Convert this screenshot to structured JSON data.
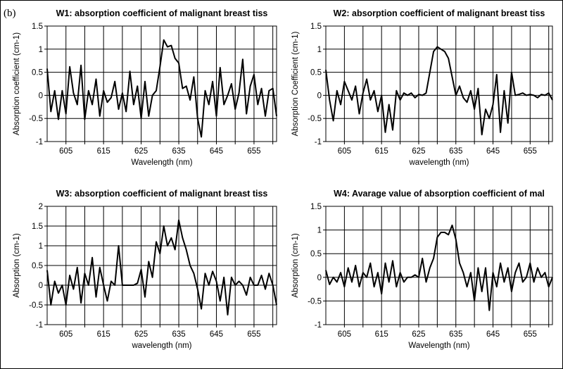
{
  "figure": {
    "panel_label": "(b)"
  },
  "chart_data": [
    {
      "type": "line",
      "title": "W1: absorption coefficient of malignant breast tiss",
      "xlabel": "Wavelength (nm)",
      "ylabel": "Absorption coefficient (cm-1)",
      "xlim": [
        600,
        661
      ],
      "ylim": [
        -1,
        1.5
      ],
      "xticks": [
        605,
        615,
        625,
        635,
        645,
        655
      ],
      "yticks": [
        -1,
        -0.5,
        0,
        0.5,
        1,
        1.5
      ],
      "grid": true,
      "series": [
        {
          "x": [
            600,
            601,
            602,
            603,
            604,
            605,
            606,
            607,
            608,
            609,
            610,
            611,
            612,
            613,
            614,
            615,
            616,
            617,
            618,
            619,
            620,
            621,
            622,
            623,
            624,
            625,
            626,
            627,
            628,
            629,
            630,
            631,
            632,
            633,
            634,
            635,
            636,
            637,
            638,
            639,
            640,
            641,
            642,
            643,
            644,
            645,
            646,
            647,
            648,
            649,
            650,
            651,
            652,
            653,
            654,
            655,
            656,
            657,
            658,
            659,
            660,
            661
          ],
          "y": [
            0.58,
            -0.35,
            0.1,
            -0.52,
            0.1,
            -0.4,
            0.62,
            0.05,
            -0.2,
            0.65,
            -0.52,
            0.1,
            -0.2,
            0.35,
            -0.45,
            0.1,
            -0.15,
            -0.05,
            0.3,
            -0.3,
            0.05,
            -0.35,
            0.52,
            -0.2,
            0.2,
            -0.5,
            0.3,
            -0.45,
            0.0,
            0.1,
            0.62,
            1.2,
            1.05,
            1.08,
            0.8,
            0.7,
            0.15,
            0.2,
            -0.1,
            0.4,
            -0.5,
            -0.9,
            0.1,
            -0.2,
            0.3,
            -0.45,
            0.6,
            -0.2,
            0.0,
            0.25,
            -0.3,
            0.05,
            0.78,
            -0.4,
            0.2,
            0.45,
            -0.2,
            0.15,
            -0.45,
            0.1,
            0.15,
            -0.45
          ]
        }
      ]
    },
    {
      "type": "line",
      "title": "W2: absorption coefficient of malignant breast tiss",
      "xlabel": "wavelength (nm)",
      "ylabel": "Absorption Coefficient (cm-1)",
      "xlim": [
        600,
        661
      ],
      "ylim": [
        -1,
        1.5
      ],
      "xticks": [
        605,
        615,
        625,
        635,
        645,
        655
      ],
      "yticks": [
        -1,
        -0.5,
        0,
        0.5,
        1,
        1.5
      ],
      "grid": true,
      "series": [
        {
          "x": [
            600,
            601,
            602,
            603,
            604,
            605,
            606,
            607,
            608,
            609,
            610,
            611,
            612,
            613,
            614,
            615,
            616,
            617,
            618,
            619,
            620,
            621,
            622,
            623,
            624,
            625,
            626,
            627,
            628,
            629,
            630,
            631,
            632,
            633,
            634,
            635,
            636,
            637,
            638,
            639,
            640,
            641,
            642,
            643,
            644,
            645,
            646,
            647,
            648,
            649,
            650,
            651,
            652,
            653,
            654,
            655,
            656,
            657,
            658,
            659,
            660,
            661
          ],
          "y": [
            0.55,
            -0.1,
            -0.55,
            0.1,
            -0.2,
            0.3,
            0.1,
            -0.1,
            0.2,
            -0.4,
            0.05,
            0.35,
            -0.1,
            0.1,
            -0.35,
            0.0,
            -0.8,
            -0.2,
            -0.75,
            0.1,
            -0.1,
            0.05,
            0.0,
            0.05,
            -0.05,
            0.02,
            0.0,
            0.05,
            0.5,
            0.95,
            1.05,
            1.0,
            0.95,
            0.8,
            0.4,
            0.0,
            0.2,
            -0.05,
            -0.15,
            0.1,
            -0.3,
            0.15,
            -0.85,
            -0.3,
            -0.5,
            -0.2,
            0.45,
            -0.8,
            0.1,
            -0.6,
            0.5,
            0.0,
            0.02,
            0.05,
            0.0,
            0.02,
            0.0,
            -0.05,
            0.02,
            0.0,
            0.05,
            -0.1
          ]
        }
      ]
    },
    {
      "type": "line",
      "title": "W3: absorption coefficient of malignant breast tiss",
      "xlabel": "wavelength (nm)",
      "ylabel": "Absorption (cm-1)",
      "xlim": [
        600,
        661
      ],
      "ylim": [
        -1,
        2
      ],
      "xticks": [
        605,
        615,
        625,
        635,
        645,
        655
      ],
      "yticks": [
        -1,
        -0.5,
        0,
        0.5,
        1,
        1.5,
        2
      ],
      "grid": true,
      "series": [
        {
          "x": [
            600,
            601,
            602,
            603,
            604,
            605,
            606,
            607,
            608,
            609,
            610,
            611,
            612,
            613,
            614,
            615,
            616,
            617,
            618,
            619,
            620,
            621,
            622,
            623,
            624,
            625,
            626,
            627,
            628,
            629,
            630,
            631,
            632,
            633,
            634,
            635,
            636,
            637,
            638,
            639,
            640,
            641,
            642,
            643,
            644,
            645,
            646,
            647,
            648,
            649,
            650,
            651,
            652,
            653,
            654,
            655,
            656,
            657,
            658,
            659,
            660,
            661
          ],
          "y": [
            0.38,
            -0.5,
            0.1,
            -0.2,
            0.0,
            -0.5,
            0.25,
            -0.1,
            0.45,
            -0.45,
            0.3,
            0.0,
            0.7,
            -0.3,
            0.45,
            0.0,
            -0.4,
            0.1,
            0.0,
            1.0,
            0.0,
            0.0,
            0.0,
            0.0,
            0.05,
            0.4,
            -0.3,
            0.6,
            0.2,
            1.1,
            0.8,
            1.5,
            1.0,
            1.2,
            0.9,
            1.65,
            1.2,
            0.9,
            0.5,
            0.3,
            -0.1,
            -0.6,
            0.3,
            0.0,
            0.35,
            0.1,
            -0.4,
            0.2,
            -0.75,
            0.2,
            0.0,
            0.1,
            0.0,
            -0.25,
            0.2,
            0.0,
            0.0,
            0.25,
            -0.1,
            0.3,
            0.0,
            -0.5
          ]
        }
      ]
    },
    {
      "type": "line",
      "title": "W4: Avarage value of absorption coefficient of mal",
      "xlabel": "Wavelength (nm)",
      "ylabel": "Absorption (cm-1)",
      "xlim": [
        600,
        661
      ],
      "ylim": [
        -1,
        1.5
      ],
      "xticks": [
        605,
        615,
        625,
        635,
        645,
        655
      ],
      "yticks": [
        -1,
        -0.5,
        0,
        0.5,
        1,
        1.5
      ],
      "grid": true,
      "series": [
        {
          "x": [
            600,
            601,
            602,
            603,
            604,
            605,
            606,
            607,
            608,
            609,
            610,
            611,
            612,
            613,
            614,
            615,
            616,
            617,
            618,
            619,
            620,
            621,
            622,
            623,
            624,
            625,
            626,
            627,
            628,
            629,
            630,
            631,
            632,
            633,
            634,
            635,
            636,
            637,
            638,
            639,
            640,
            641,
            642,
            643,
            644,
            645,
            646,
            647,
            648,
            649,
            650,
            651,
            652,
            653,
            654,
            655,
            656,
            657,
            658,
            659,
            660,
            661
          ],
          "y": [
            0.15,
            -0.15,
            0.0,
            -0.1,
            0.1,
            -0.2,
            0.2,
            -0.1,
            0.25,
            -0.2,
            0.1,
            0.0,
            0.3,
            -0.2,
            0.1,
            -0.35,
            0.3,
            -0.1,
            0.35,
            -0.2,
            0.1,
            -0.1,
            0.0,
            0.0,
            0.05,
            0.0,
            0.4,
            -0.1,
            0.2,
            0.4,
            0.85,
            0.95,
            0.95,
            0.9,
            1.1,
            0.8,
            0.3,
            0.1,
            -0.2,
            0.1,
            -0.5,
            0.2,
            -0.3,
            0.2,
            -0.7,
            0.1,
            -0.2,
            0.3,
            -0.1,
            0.2,
            -0.3,
            0.1,
            0.3,
            -0.1,
            0.0,
            0.3,
            -0.1,
            0.2,
            0.0,
            0.1,
            -0.2,
            0.0
          ]
        }
      ]
    }
  ]
}
